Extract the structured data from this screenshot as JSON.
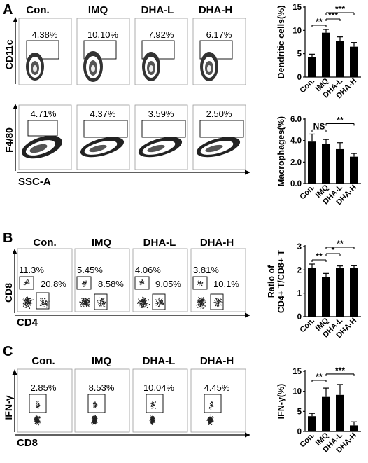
{
  "panels": {
    "A": {
      "letter": "A",
      "flow_rows": [
        {
          "y_axis": "CD11c",
          "x_axis": "",
          "groups": [
            "Con.",
            "IMQ",
            "DHA-L",
            "DHA-H"
          ],
          "percentages": [
            "4.38%",
            "10.10%",
            "7.92%",
            "6.17%"
          ]
        },
        {
          "y_axis": "F4/80",
          "x_axis": "SSC-A",
          "groups": [
            "",
            "",
            "",
            ""
          ],
          "percentages": [
            "4.71%",
            "4.37%",
            "3.59%",
            "2.50%"
          ]
        }
      ]
    },
    "B": {
      "letter": "B",
      "flow_rows": [
        {
          "y_axis": "CD8",
          "x_axis": "CD4",
          "groups": [
            "Con.",
            "IMQ",
            "DHA-L",
            "DHA-H"
          ],
          "cd8_percentages": [
            "11.3%",
            "5.45%",
            "4.06%",
            "3.81%"
          ],
          "cd4_percentages": [
            "20.8%",
            "8.58%",
            "9.05%",
            "10.1%"
          ]
        }
      ]
    },
    "C": {
      "letter": "C",
      "flow_rows": [
        {
          "y_axis": "IFN-γ",
          "x_axis": "CD8",
          "groups": [
            "Con.",
            "IMQ",
            "DHA-L",
            "DHA-H"
          ],
          "percentages": [
            "2.85%",
            "8.53%",
            "10.04%",
            "4.45%"
          ]
        }
      ]
    }
  },
  "chart_data": [
    {
      "type": "bar",
      "panel": "A",
      "categories": [
        "Con.",
        "IMQ",
        "DHA-L",
        "DHA-H"
      ],
      "values": [
        4.3,
        9.5,
        7.7,
        6.5
      ],
      "errors": [
        0.6,
        0.7,
        0.9,
        0.9
      ],
      "ylabel": "Dendritic cells(%)",
      "ylim": [
        0,
        15
      ],
      "yticks": [
        "0",
        "5",
        "10",
        "15"
      ],
      "significance": [
        {
          "from": 0,
          "to": 1,
          "label": "**"
        },
        {
          "from": 1,
          "to": 2,
          "label": "***"
        },
        {
          "from": 1,
          "to": 3,
          "label": "***"
        }
      ]
    },
    {
      "type": "bar",
      "panel": "A",
      "categories": [
        "Con.",
        "IMQ",
        "DHA-L",
        "DHA-H"
      ],
      "values": [
        3.9,
        3.7,
        3.2,
        2.5
      ],
      "errors": [
        0.7,
        0.4,
        0.6,
        0.3
      ],
      "ylabel": "Macrophages(%)",
      "ylim": [
        0,
        6
      ],
      "yticks": [
        "0.0",
        "2.0",
        "4.0",
        "6.0"
      ],
      "significance": [
        {
          "from": 0,
          "to": 1,
          "label": "NS"
        },
        {
          "from": 1,
          "to": 3,
          "label": "**"
        }
      ]
    },
    {
      "type": "bar",
      "panel": "B",
      "categories": [
        "Con.",
        "IMQ",
        "DHA-L",
        "DHA-H"
      ],
      "values": [
        2.1,
        1.7,
        2.1,
        2.1
      ],
      "errors": [
        0.15,
        0.15,
        0.07,
        0.08
      ],
      "ylabel": "Ratio of\nCD4+ T/CD8+ T",
      "ylim": [
        0,
        3
      ],
      "yticks": [
        "0",
        "1",
        "2",
        "3"
      ],
      "significance": [
        {
          "from": 0,
          "to": 1,
          "label": "**"
        },
        {
          "from": 1,
          "to": 2,
          "label": "*"
        },
        {
          "from": 1,
          "to": 3,
          "label": "**"
        }
      ]
    },
    {
      "type": "bar",
      "panel": "C",
      "categories": [
        "Con.",
        "IMQ",
        "DHA-L",
        "DHA-H"
      ],
      "values": [
        3.8,
        8.6,
        9.1,
        1.5
      ],
      "errors": [
        0.7,
        2.2,
        2.6,
        0.9
      ],
      "ylabel": "IFN-γ(%)",
      "ylim": [
        0,
        15
      ],
      "yticks": [
        "0",
        "5",
        "10",
        "15"
      ],
      "significance": [
        {
          "from": 0,
          "to": 1,
          "label": "**"
        },
        {
          "from": 1,
          "to": 3,
          "label": "***"
        }
      ]
    }
  ],
  "colors": {
    "bar": "#000000",
    "contour_dark": "#1a1a1a",
    "contour_light": "#ffffff",
    "dot": "#222222"
  }
}
